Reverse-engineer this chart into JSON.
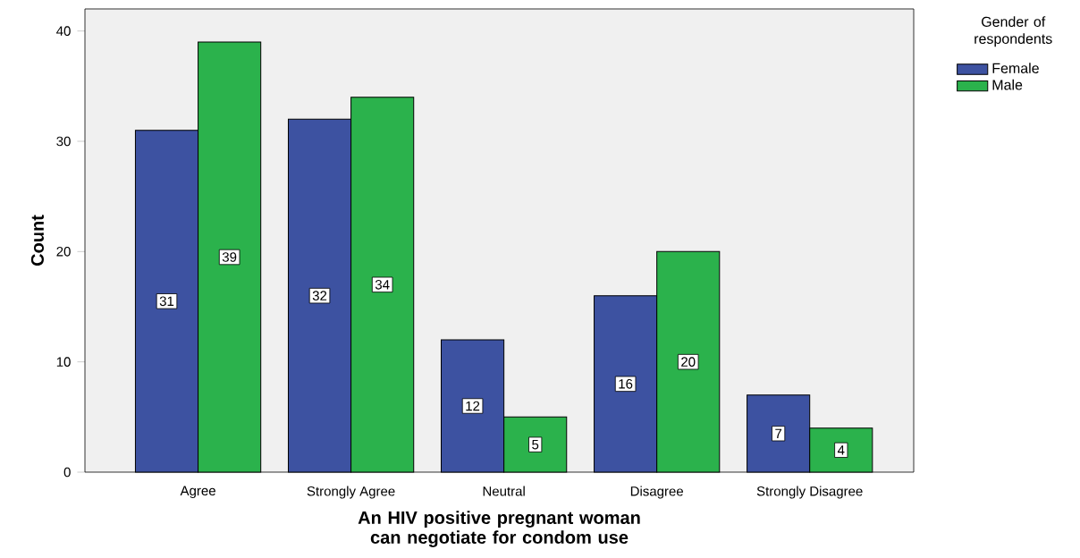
{
  "chart_data": {
    "type": "bar",
    "xlabel": "An HIV positive pregnant woman can negotiate for condom use",
    "ylabel": "Count",
    "legend_title": "Gender of respondents",
    "categories": [
      "Agree",
      "Strongly Agree",
      "Neutral",
      "Disagree",
      "Strongly Disagree"
    ],
    "series": [
      {
        "name": "Female",
        "color": "#3d52a1",
        "values": [
          31,
          32,
          12,
          16,
          7
        ]
      },
      {
        "name": "Male",
        "color": "#2bb24c",
        "values": [
          39,
          34,
          5,
          20,
          4
        ]
      }
    ],
    "ylim": [
      0,
      42
    ],
    "yticks": [
      0,
      10,
      20,
      30,
      40
    ],
    "data_labels": true,
    "legend": "top right"
  }
}
